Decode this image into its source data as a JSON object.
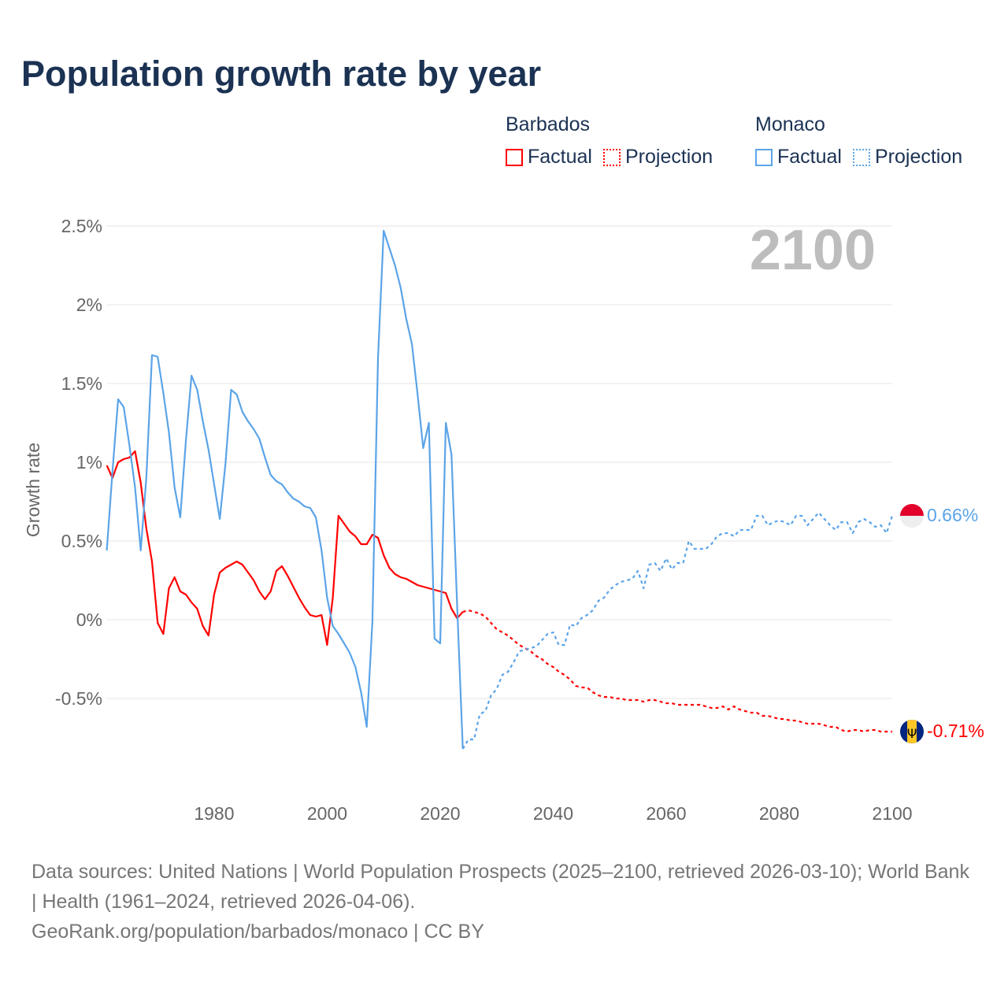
{
  "title": "Population growth rate by year",
  "legend": [
    {
      "country": "Barbados",
      "factual": "Factual",
      "projection": "Projection",
      "color": "#ff0000"
    },
    {
      "country": "Monaco",
      "factual": "Factual",
      "projection": "Projection",
      "color": "#5ba4e8"
    }
  ],
  "current_year_label": "2100",
  "end_labels": {
    "monaco": "0.66%",
    "barbados": "-0.71%"
  },
  "footer": {
    "line1": "Data sources: United Nations | World Population Prospects (2025–2100, retrieved 2026-03-10); World Bank | Health (1961–2024, retrieved 2026-04-06).",
    "line2": "GeoRank.org/population/barbados/monaco | CC BY"
  },
  "chart_data": {
    "type": "line",
    "title": "Population growth rate by year",
    "xlabel": "",
    "ylabel": "Growth rate",
    "xlim": [
      1961,
      2100
    ],
    "ylim": [
      -0.9,
      2.55
    ],
    "x_ticks": [
      1980,
      2000,
      2020,
      2040,
      2060,
      2080,
      2100
    ],
    "x_tick_labels": [
      "1980",
      "2000",
      "2020",
      "2040",
      "2060",
      "2080",
      "2100"
    ],
    "y_ticks": [
      2.5,
      2,
      1.5,
      1,
      0.5,
      0,
      -0.5
    ],
    "y_tick_labels": [
      "2.5%",
      "2%",
      "1.5%",
      "1%",
      "0.5%",
      "0%",
      "-0.5%"
    ],
    "grid": true,
    "legend_placement": "top-right",
    "series": [
      {
        "name": "Barbados Factual",
        "color": "#ff0000",
        "style": "solid",
        "x_start": 1961,
        "values": [
          0.98,
          0.9,
          1.0,
          1.02,
          1.03,
          1.07,
          0.87,
          0.58,
          0.37,
          -0.02,
          -0.09,
          0.2,
          0.27,
          0.18,
          0.16,
          0.11,
          0.07,
          -0.04,
          -0.1,
          0.16,
          0.3,
          0.33,
          0.35,
          0.37,
          0.35,
          0.3,
          0.25,
          0.18,
          0.13,
          0.18,
          0.31,
          0.34,
          0.28,
          0.21,
          0.14,
          0.08,
          0.03,
          0.02,
          0.03,
          -0.16,
          0.14,
          0.66,
          0.61,
          0.56,
          0.53,
          0.48,
          0.48,
          0.54,
          0.52,
          0.41,
          0.33,
          0.29,
          0.27,
          0.26,
          0.24,
          0.22,
          0.21,
          0.2,
          0.19,
          0.18,
          0.17,
          0.07,
          0.01,
          0.05
        ]
      },
      {
        "name": "Barbados Projection",
        "color": "#ff0000",
        "style": "dotted",
        "x_start": 2025,
        "values": [
          0.06,
          0.05,
          0.04,
          0.02,
          -0.02,
          -0.06,
          -0.08,
          -0.1,
          -0.13,
          -0.16,
          -0.18,
          -0.2,
          -0.23,
          -0.25,
          -0.28,
          -0.3,
          -0.33,
          -0.35,
          -0.38,
          -0.42,
          -0.43,
          -0.43,
          -0.46,
          -0.48,
          -0.49,
          -0.49,
          -0.5,
          -0.5,
          -0.51,
          -0.51,
          -0.51,
          -0.52,
          -0.51,
          -0.51,
          -0.52,
          -0.53,
          -0.53,
          -0.54,
          -0.54,
          -0.54,
          -0.54,
          -0.54,
          -0.55,
          -0.56,
          -0.56,
          -0.55,
          -0.57,
          -0.55,
          -0.57,
          -0.58,
          -0.59,
          -0.59,
          -0.61,
          -0.61,
          -0.62,
          -0.63,
          -0.63,
          -0.64,
          -0.64,
          -0.65,
          -0.66,
          -0.66,
          -0.66,
          -0.67,
          -0.68,
          -0.68,
          -0.7,
          -0.71,
          -0.7,
          -0.7,
          -0.71,
          -0.7,
          -0.7,
          -0.71,
          -0.71,
          -0.71
        ]
      },
      {
        "name": "Monaco Factual",
        "color": "#5ba4e8",
        "style": "solid",
        "x_start": 1961,
        "values": [
          0.44,
          0.94,
          1.4,
          1.35,
          1.11,
          0.84,
          0.44,
          0.9,
          1.68,
          1.67,
          1.44,
          1.19,
          0.84,
          0.65,
          1.14,
          1.55,
          1.46,
          1.26,
          1.08,
          0.86,
          0.64,
          0.99,
          1.46,
          1.43,
          1.32,
          1.26,
          1.21,
          1.15,
          1.03,
          0.92,
          0.88,
          0.86,
          0.81,
          0.77,
          0.75,
          0.72,
          0.71,
          0.65,
          0.44,
          0.14,
          -0.04,
          -0.09,
          -0.15,
          -0.21,
          -0.3,
          -0.46,
          -0.68,
          -0.01,
          1.66,
          2.47,
          2.36,
          2.25,
          2.11,
          1.91,
          1.75,
          1.43,
          1.09,
          1.25,
          -0.12,
          -0.15,
          1.25,
          1.05,
          0.09,
          -0.82
        ]
      },
      {
        "name": "Monaco Projection",
        "color": "#5ba4e8",
        "style": "dotted",
        "x_start": 2025,
        "values": [
          -0.76,
          -0.76,
          -0.6,
          -0.58,
          -0.48,
          -0.44,
          -0.35,
          -0.33,
          -0.27,
          -0.2,
          -0.19,
          -0.18,
          -0.17,
          -0.13,
          -0.09,
          -0.08,
          -0.16,
          -0.16,
          -0.03,
          -0.04,
          0.01,
          0.03,
          0.06,
          0.12,
          0.14,
          0.19,
          0.22,
          0.24,
          0.25,
          0.26,
          0.31,
          0.2,
          0.35,
          0.36,
          0.31,
          0.39,
          0.32,
          0.36,
          0.36,
          0.5,
          0.45,
          0.45,
          0.45,
          0.48,
          0.53,
          0.55,
          0.55,
          0.53,
          0.57,
          0.57,
          0.57,
          0.66,
          0.66,
          0.6,
          0.62,
          0.63,
          0.62,
          0.6,
          0.66,
          0.66,
          0.6,
          0.64,
          0.68,
          0.64,
          0.6,
          0.57,
          0.62,
          0.62,
          0.55,
          0.62,
          0.64,
          0.62,
          0.59,
          0.6,
          0.55,
          0.66
        ]
      }
    ]
  }
}
